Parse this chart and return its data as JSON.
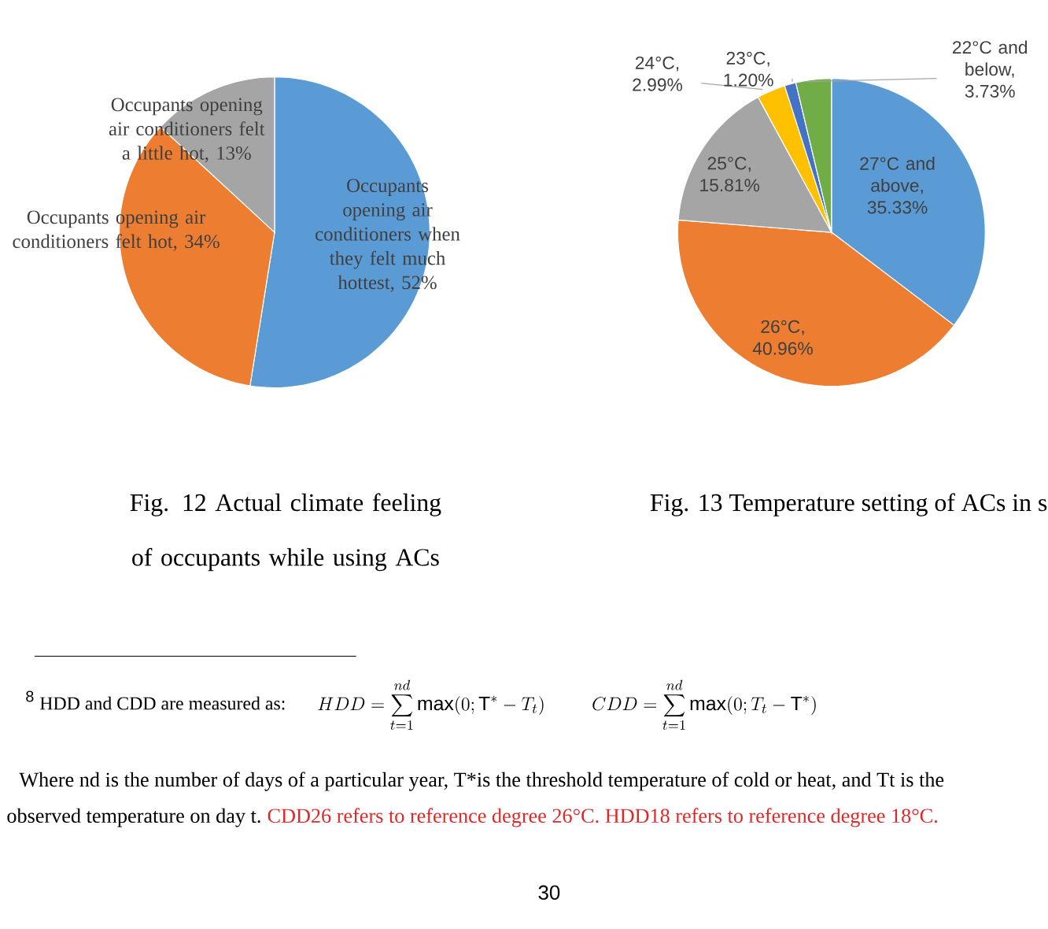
{
  "chart_data": [
    {
      "type": "pie",
      "title": "Fig. 12 Actual climate feeling of occupants while using ACs",
      "categories": [
        "Occupants opening air conditioners when they felt much hottest, 52%",
        "Occupants opening air conditioners felt hot, 34%",
        "Occupants opening air conditioners  felt a little  hot, 13%"
      ],
      "values": [
        52,
        34,
        13
      ],
      "colors": [
        "#5b9bd5",
        "#ed7d31",
        "#a5a5a5"
      ]
    },
    {
      "type": "pie",
      "title": "Fig. 13 Temperature setting of ACs in s",
      "categories": [
        "27°C and above, 35.33%",
        "26°C, 40.96%",
        "25°C, 15.81%",
        "24°C, 2.99%",
        "23°C, 1.20%",
        "22°C and below, 3.73%"
      ],
      "values": [
        35.33,
        40.96,
        15.81,
        2.99,
        1.2,
        3.73
      ],
      "colors": [
        "#5b9bd5",
        "#ed7d31",
        "#a5a5a5",
        "#ffc000",
        "#4472c4",
        "#70ad47"
      ],
      "annotations": [
        "8",
        "HDD and CDD are measured as:",
        "HDD=\\sum_{t=1}^{nd}\\max(0;\\mathrm{T}^{*}-T_{t})",
        "CDD=\\sum_{t=1}^{nd}\\max(0;T_{t}-\\mathrm{T}^{*})",
        "Where nd is the number of days of a particular year, T*is the threshold temperature of cold or heat, and Tt is the",
        "observed temperature on day t.",
        "CDD26 refers to reference degree 26°C. HDD18 refers to reference degree 18°C.",
        "30"
      ]
    }
  ]
}
